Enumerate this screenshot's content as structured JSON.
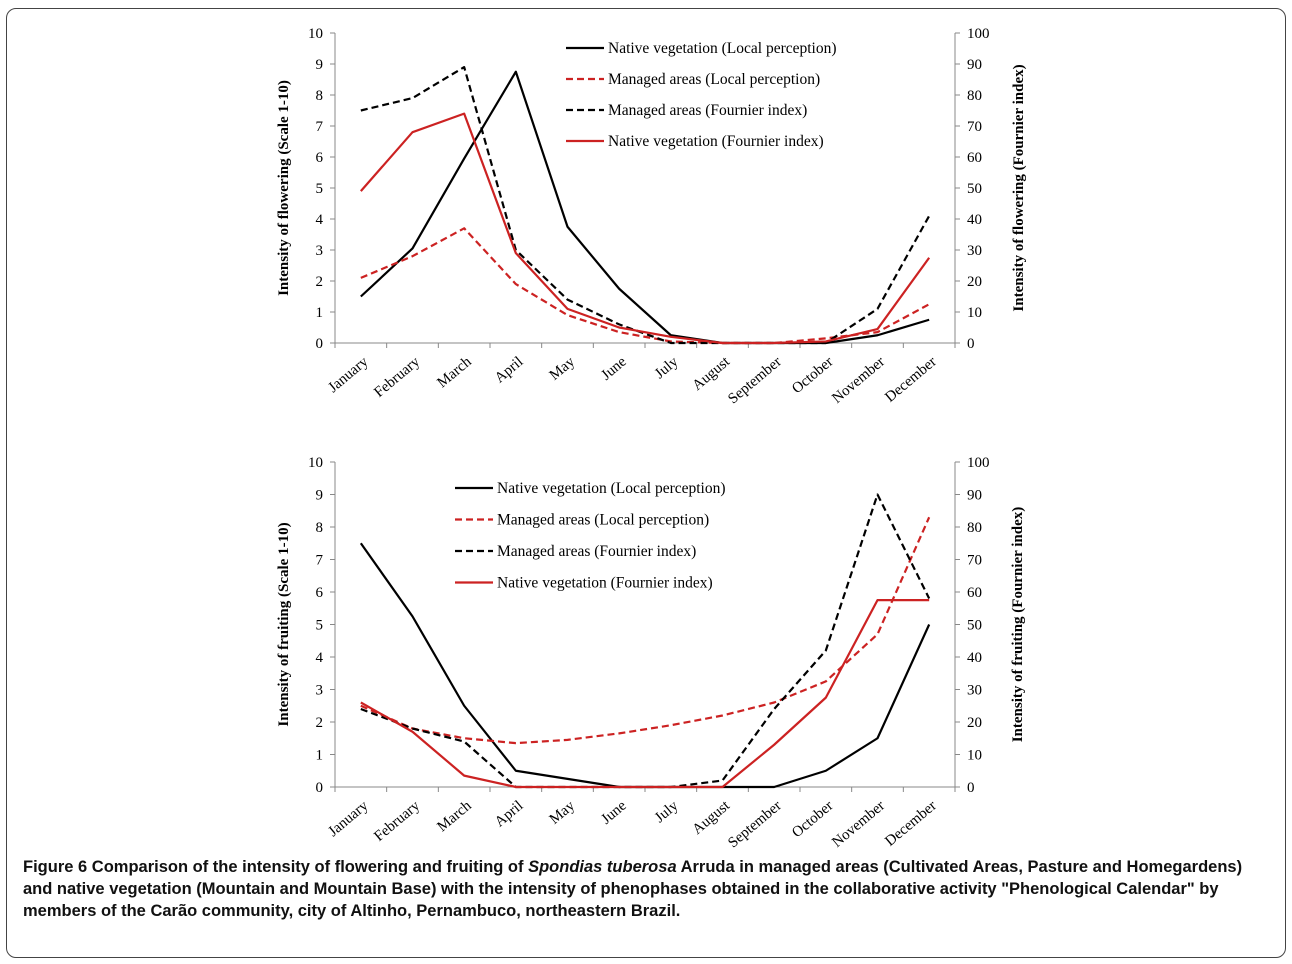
{
  "chart_data": [
    {
      "type": "line",
      "name": "flowering",
      "ylabel": "Intensity of flowering (Scale 1-10)",
      "y2label": "Intensity of flowering  (Fournier index)",
      "ylim": [
        0,
        10
      ],
      "y2lim": [
        0,
        100
      ],
      "yticks": [
        "0",
        "1",
        "2",
        "3",
        "4",
        "5",
        "6",
        "7",
        "8",
        "9",
        "10"
      ],
      "y2ticks": [
        "0",
        "10",
        "20",
        "30",
        "40",
        "50",
        "60",
        "70",
        "80",
        "90",
        "100"
      ],
      "categories": [
        "January",
        "February",
        "March",
        "April",
        "May",
        "June",
        "July",
        "August",
        "September",
        "October",
        "November",
        "December"
      ],
      "legend_position": "top-right",
      "series": [
        {
          "name": "Native vegetation (Local perception)",
          "axis": "left",
          "color": "#000000",
          "dash": false,
          "values": [
            1.5,
            3.05,
            5.95,
            8.75,
            3.75,
            1.75,
            0.25,
            0,
            0,
            0,
            0.25,
            0.75
          ]
        },
        {
          "name": "Managed areas (Local perception)",
          "axis": "left",
          "color": "#cc2222",
          "dash": true,
          "values": [
            2.1,
            2.8,
            3.7,
            1.9,
            0.9,
            0.35,
            0.05,
            0,
            0,
            0.15,
            0.35,
            1.25
          ]
        },
        {
          "name": "Managed areas (Fournier index)",
          "axis": "right",
          "color": "#000000",
          "dash": true,
          "values": [
            75,
            79,
            89,
            30,
            14,
            6,
            0,
            0,
            0,
            0,
            11,
            41
          ]
        },
        {
          "name": "Native vegetation (Fournier index)",
          "axis": "right",
          "color": "#cc2222",
          "dash": false,
          "values": [
            49,
            68,
            74,
            29,
            11,
            5,
            2,
            0,
            0,
            0.5,
            4.5,
            27.5
          ]
        }
      ]
    },
    {
      "type": "line",
      "name": "fruiting",
      "ylabel": "Intensity of fruiting (Scale 1-10)",
      "y2label": "Intensity of fruiting  (Fournier index)",
      "ylim": [
        0,
        10
      ],
      "y2lim": [
        0,
        100
      ],
      "yticks": [
        "0",
        "1",
        "2",
        "3",
        "4",
        "5",
        "6",
        "7",
        "8",
        "9",
        "10"
      ],
      "y2ticks": [
        "0",
        "10",
        "20",
        "30",
        "40",
        "50",
        "60",
        "70",
        "80",
        "90",
        "100"
      ],
      "categories": [
        "January",
        "February",
        "March",
        "April",
        "May",
        "June",
        "July",
        "August",
        "September",
        "October",
        "November",
        "December"
      ],
      "legend_position": "top-center",
      "series": [
        {
          "name": "Native vegetation (Local perception)",
          "axis": "left",
          "color": "#000000",
          "dash": false,
          "values": [
            7.5,
            5.25,
            2.5,
            0.5,
            0.25,
            0,
            0,
            0,
            0,
            0.5,
            1.5,
            5
          ]
        },
        {
          "name": "Managed areas (Local perception)",
          "axis": "left",
          "color": "#cc2222",
          "dash": true,
          "values": [
            2.5,
            1.8,
            1.5,
            1.35,
            1.45,
            1.65,
            1.9,
            2.2,
            2.6,
            3.25,
            4.7,
            8.3
          ]
        },
        {
          "name": "Managed areas (Fournier index)",
          "axis": "right",
          "color": "#000000",
          "dash": true,
          "values": [
            24,
            18,
            14,
            0,
            0,
            0,
            0,
            2,
            24,
            42,
            90,
            58
          ]
        },
        {
          "name": "Native vegetation (Fournier index)",
          "axis": "right",
          "color": "#cc2222",
          "dash": false,
          "values": [
            26,
            17,
            3.5,
            0,
            0,
            0,
            0,
            0,
            13,
            27.5,
            57.5,
            57.5
          ]
        }
      ]
    }
  ],
  "caption": {
    "figure_label": "Figure 6",
    "text_before_italic": " Comparison of the intensity of flowering and fruiting of ",
    "italic": "Spondias tuberosa",
    "text_after_italic": " Arruda in managed areas (Cultivated Areas, Pasture and Homegardens) and native vegetation (Mountain and Mountain Base) with the intensity of phenophases obtained in the collaborative activity \"Phenological Calendar\" by members of the Carão community, city of Altinho, Pernambuco, northeastern Brazil."
  }
}
